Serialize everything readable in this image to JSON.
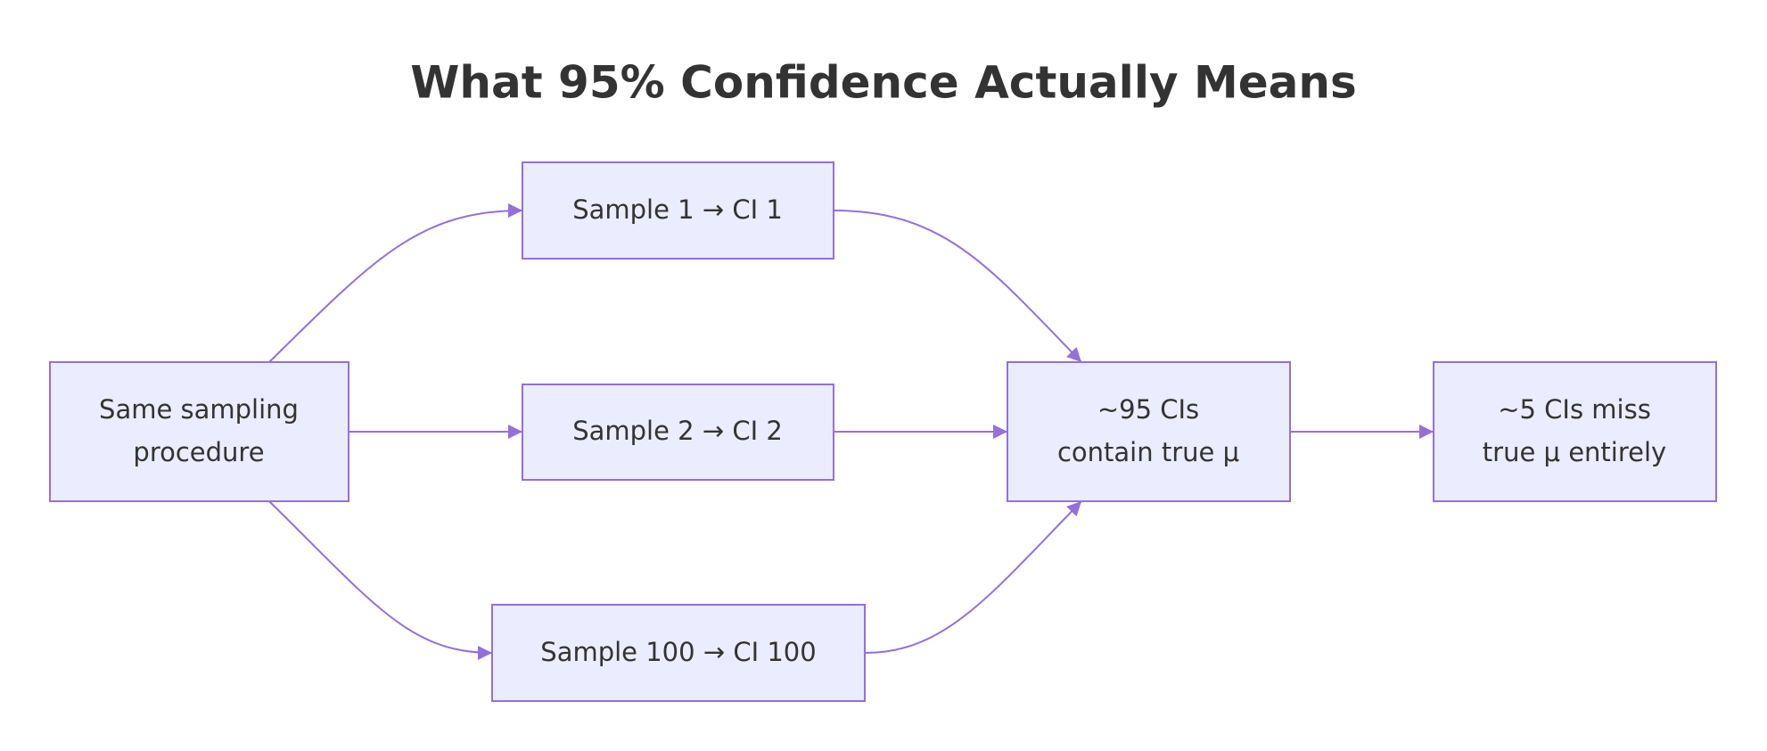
{
  "title": "What 95% Confidence Actually Means",
  "nodes": [
    {
      "lines": [
        "Same sampling",
        "procedure"
      ]
    },
    {
      "lines": [
        "Sample 1 → CI 1"
      ]
    },
    {
      "lines": [
        "Sample 2 → CI 2"
      ]
    },
    {
      "lines": [
        "Sample 100 → CI 100"
      ]
    },
    {
      "lines": [
        "~95 CIs",
        "contain true μ"
      ]
    },
    {
      "lines": [
        "~5 CIs miss",
        "true μ entirely"
      ]
    }
  ]
}
